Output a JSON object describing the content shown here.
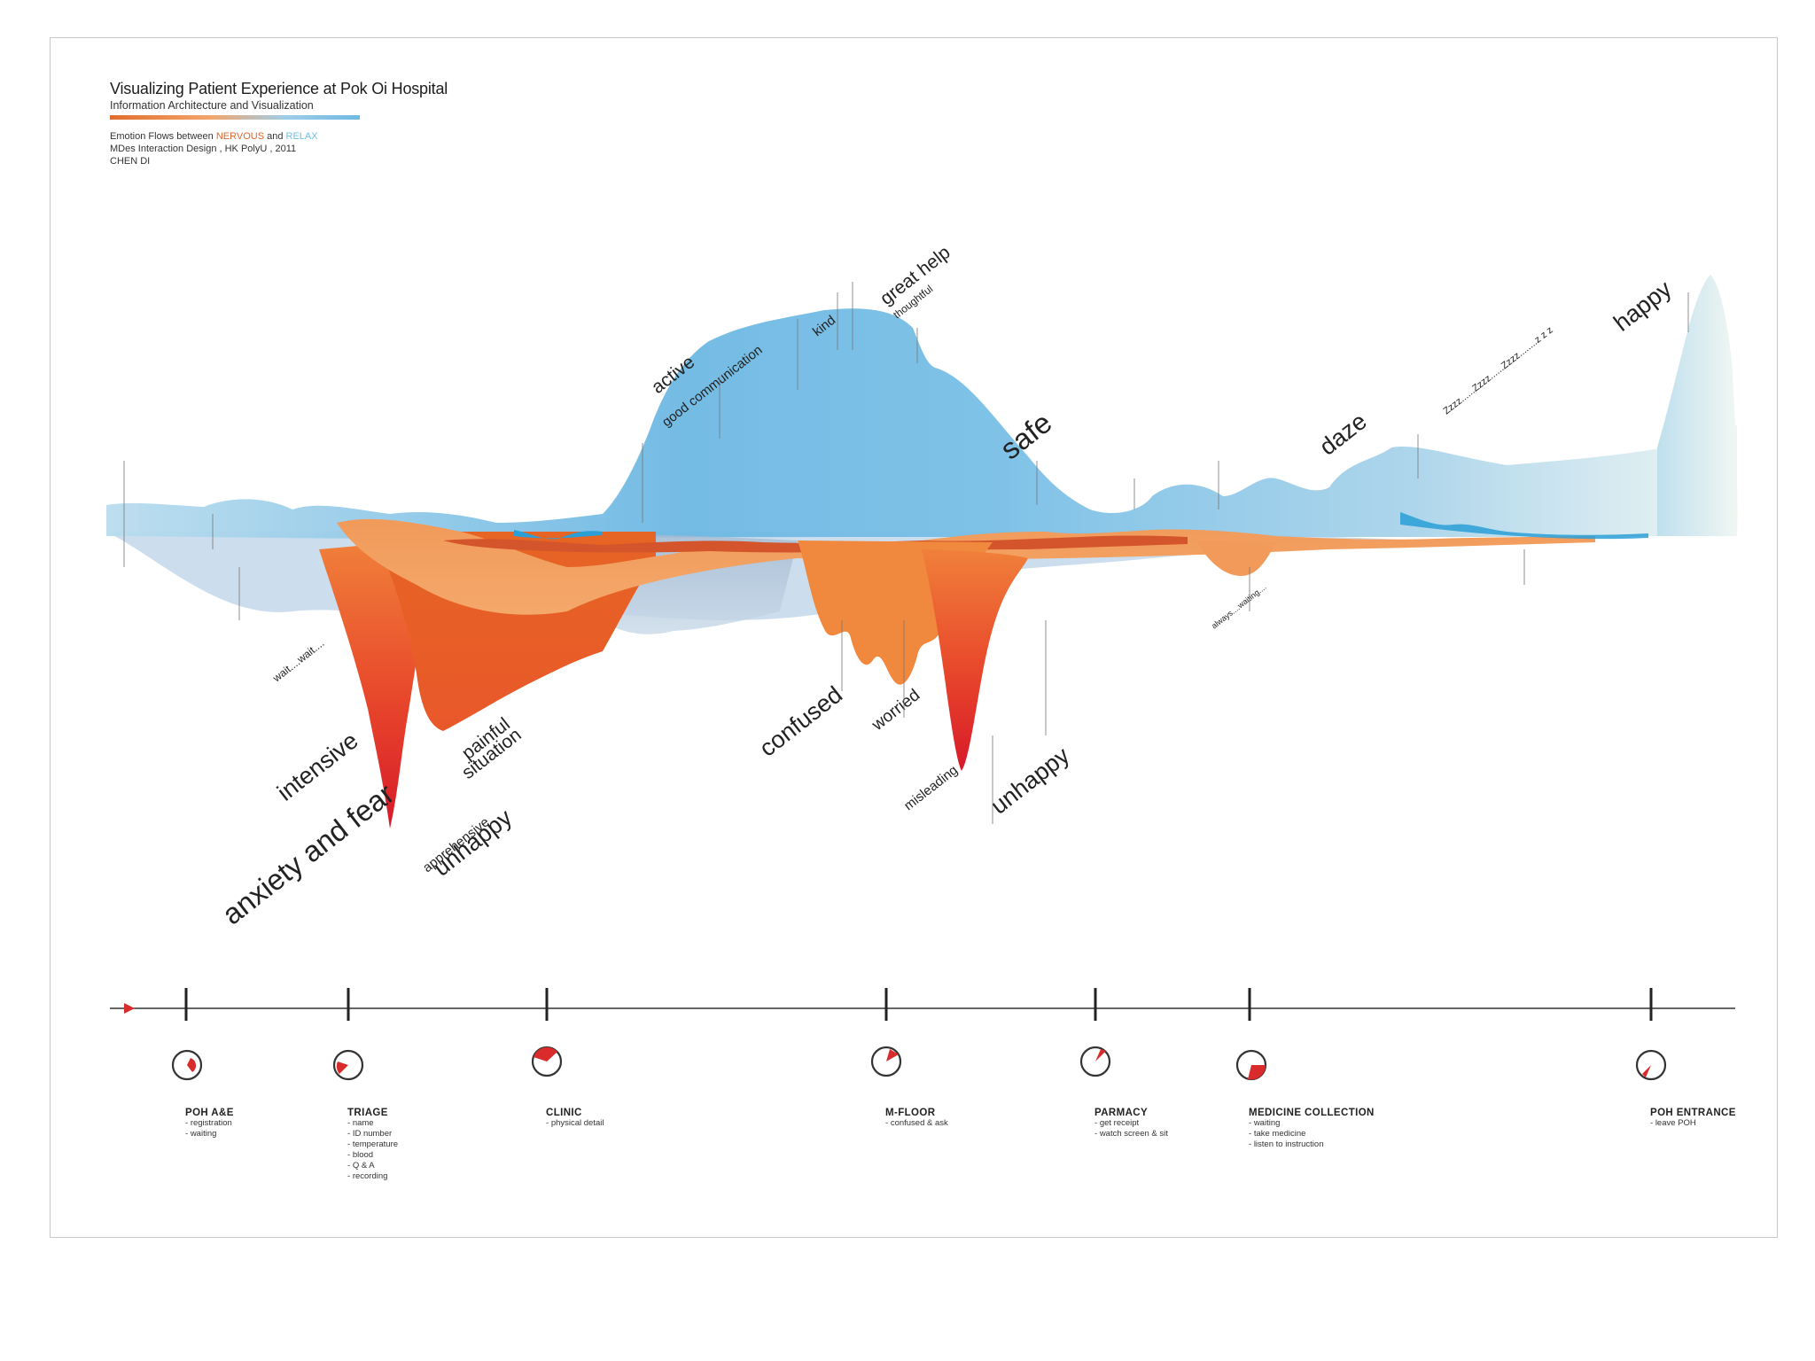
{
  "header": {
    "title": "Visualizing Patient Experience at Pok Oi Hospital",
    "subtitle": "Information Architecture and Visualization",
    "emotion_prefix": "Emotion Flows between",
    "nervous": "NERVOUS",
    "and": "and",
    "relax": "RELAX",
    "program": "MDes Interaction Design , HK PolyU , 2011",
    "author": "CHEN DI"
  },
  "colors": {
    "nervous": "#e85d24",
    "deep_nervous": "#d8202a",
    "relax": "#6db8e3",
    "pale_relax": "#dcebf2",
    "axis": "#333333",
    "arrow": "#d92b2b"
  },
  "emotion_labels": {
    "anxiety": "anxiety and fear",
    "intensive": "intensive",
    "painful": "painful",
    "situation": "situation",
    "apprehensive": "apprehensive",
    "unhappy1": "unhappy",
    "confused": "confused",
    "worried": "worried",
    "misleading": "misleading",
    "unhappy2": "unhappy",
    "active": "active",
    "good_comm": "good communication",
    "kind": "kind",
    "great_help": "great help",
    "thoughtful": "thoughtful",
    "safe": "safe",
    "daze": "daze",
    "zzz": "Zzzz......Zzzz......Zzzz........z z z",
    "happy": "happy",
    "wait": "wait....wait....",
    "always_waiting": "always....waiting...."
  },
  "stages": [
    {
      "name": "POH A&E",
      "steps": [
        "registration",
        "waiting"
      ]
    },
    {
      "name": "TRIAGE",
      "steps": [
        "name",
        "ID number",
        "temperature",
        "blood",
        "Q & A",
        "recording"
      ]
    },
    {
      "name": "CLINIC",
      "steps": [
        "physical detail"
      ]
    },
    {
      "name": "M-FLOOR",
      "steps": [
        "confused & ask"
      ]
    },
    {
      "name": "PARMACY",
      "steps": [
        "get receipt",
        "watch screen & sit"
      ]
    },
    {
      "name": "MEDICINE COLLECTION",
      "steps": [
        "waiting",
        "take medicine",
        "listen to instruction"
      ]
    },
    {
      "name": "POH ENTRANCE",
      "steps": [
        "leave POH"
      ]
    }
  ]
}
